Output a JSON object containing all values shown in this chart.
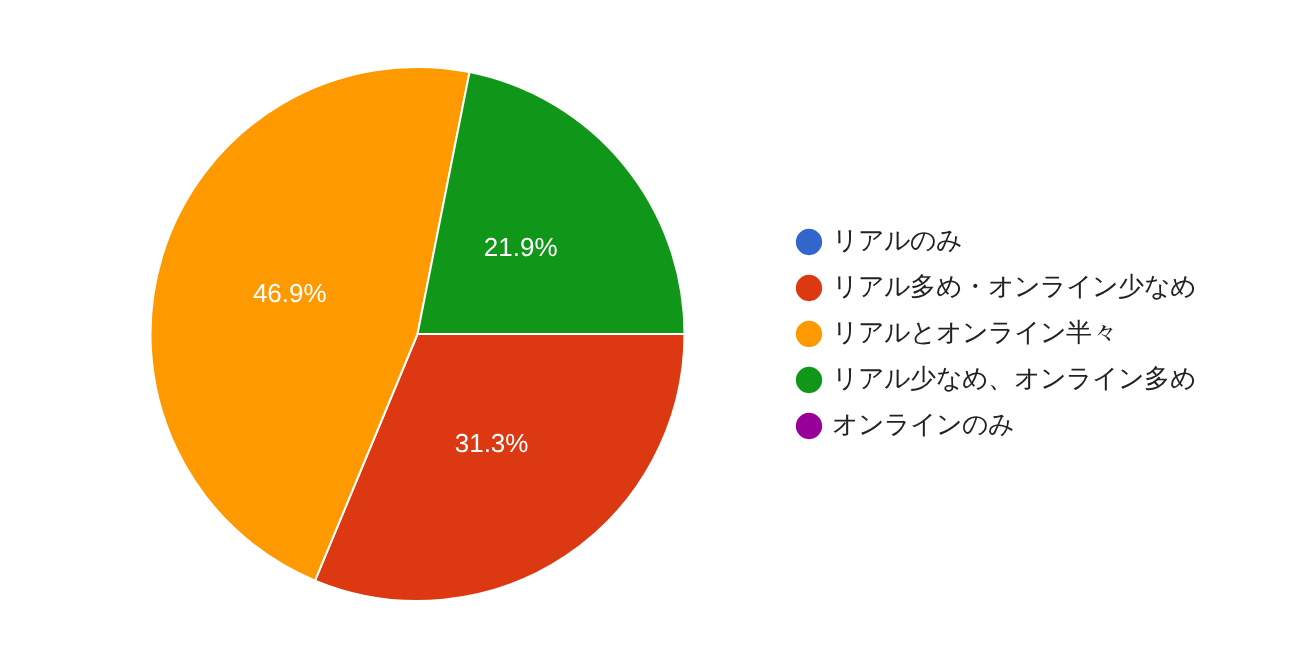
{
  "chart_data": {
    "type": "pie",
    "categories": [
      "リアルのみ",
      "リアル多め・オンライン少なめ",
      "リアルとオンライン半々",
      "リアル少なめ、オンライン多め",
      "オンラインのみ"
    ],
    "values": [
      0,
      31.3,
      46.9,
      21.9,
      0
    ],
    "colors": [
      "#3366cc",
      "#dc3912",
      "#ff9900",
      "#109618",
      "#990099"
    ],
    "value_labels": [
      null,
      "31.3%",
      "46.9%",
      "21.9%",
      null
    ],
    "legend": "right"
  }
}
